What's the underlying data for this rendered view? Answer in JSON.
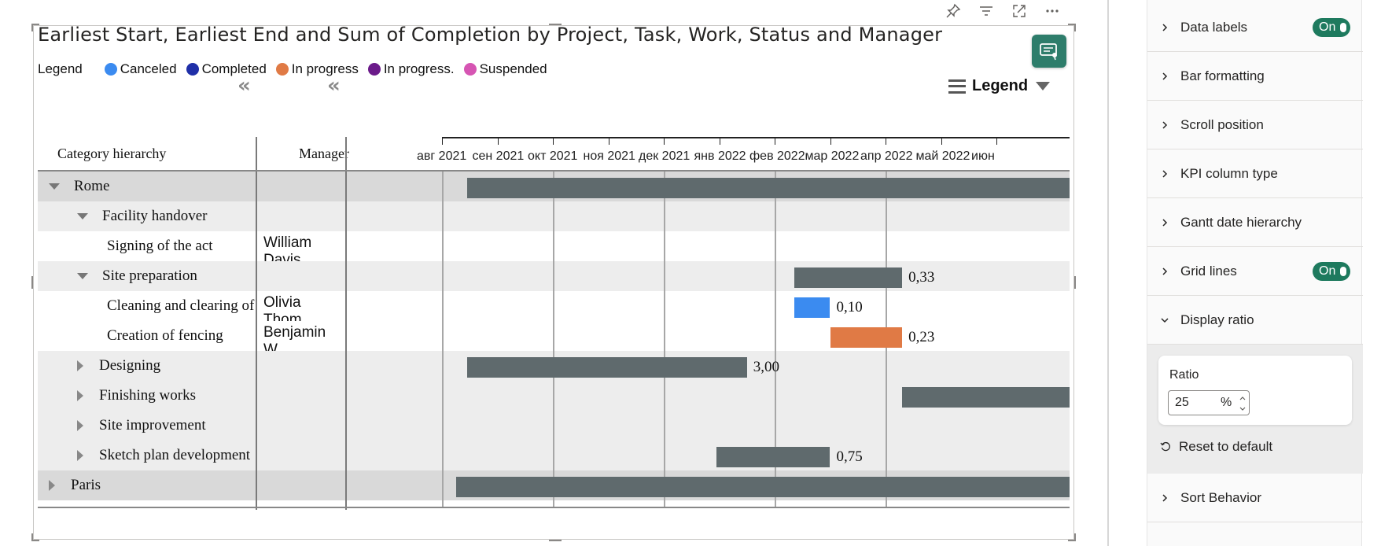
{
  "visual": {
    "title": "Earliest Start, Earliest End and Sum of Completion by Project, Task, Work, Status and Manager",
    "toolbar": [
      {
        "name": "pin-icon"
      },
      {
        "name": "filter-icon"
      },
      {
        "name": "focus-mode-icon"
      },
      {
        "name": "more-options-icon"
      }
    ],
    "insight_icon": "smart-narrative-icon",
    "legend": {
      "title": "Legend",
      "items": [
        {
          "label": "Canceled",
          "color": "#3b8bf0"
        },
        {
          "label": "Completed",
          "color": "#1f2fa8"
        },
        {
          "label": "In progress",
          "color": "#e07a45"
        },
        {
          "label": "In progress.",
          "color": "#6b1a8a"
        },
        {
          "label": "Suspended",
          "color": "#d655b3"
        }
      ]
    },
    "legend_toggle": "Legend",
    "collapse_glyph": "«",
    "columns": {
      "category": "Category hierarchy",
      "manager": "Manager"
    },
    "row_shade_colors": {
      "level0": "#d9d9d9",
      "level1": "#ededed",
      "level2": "#ffffff"
    },
    "months": [
      "авг 2021",
      "сен 2021",
      "окт 2021",
      "ноя 2021",
      "дек 2021",
      "янв 2022",
      "фев 2022",
      "мар 2022",
      "апр 2022",
      "май 2022",
      "июн"
    ],
    "rows": [
      {
        "label": "Rome",
        "level": 0,
        "expander": "expanded",
        "manager": "",
        "bar": {
          "start": 0.45,
          "end": 12.0,
          "color": "#5f6a6d"
        },
        "value": ""
      },
      {
        "label": "Facility handover",
        "level": 1,
        "expander": "expanded",
        "manager": "",
        "bar": null,
        "value": ""
      },
      {
        "label": "Signing of the act",
        "level": 2,
        "expander": "none",
        "manager": "William Davis",
        "bar": null,
        "value": ""
      },
      {
        "label": "Site preparation",
        "level": 1,
        "expander": "expanded",
        "manager": "",
        "bar": {
          "start": 6.35,
          "end": 8.3,
          "color": "#5f6a6d"
        },
        "value": "0,33"
      },
      {
        "label": "Cleaning and clearing of the territory",
        "level": 2,
        "expander": "none",
        "manager": "Olivia Thom...",
        "bar": {
          "start": 6.35,
          "end": 7.0,
          "color": "#3b8bf0"
        },
        "value": "0,10"
      },
      {
        "label": "Creation of fencing",
        "level": 2,
        "expander": "none",
        "manager": "Benjamin W...",
        "bar": {
          "start": 7.0,
          "end": 8.3,
          "color": "#e07a45"
        },
        "value": "0,23"
      },
      {
        "label": "Designing",
        "level": 1,
        "expander": "collapsed",
        "manager": "",
        "bar": {
          "start": 0.45,
          "end": 5.5,
          "color": "#5f6a6d"
        },
        "value": "3,00"
      },
      {
        "label": "Finishing works",
        "level": 1,
        "expander": "collapsed",
        "manager": "",
        "bar": {
          "start": 8.3,
          "end": 12.0,
          "color": "#5f6a6d"
        },
        "value": ""
      },
      {
        "label": "Site improvement",
        "level": 1,
        "expander": "collapsed",
        "manager": "",
        "bar": null,
        "value": ""
      },
      {
        "label": "Sketch plan development",
        "level": 1,
        "expander": "collapsed",
        "manager": "",
        "bar": {
          "start": 4.95,
          "end": 7.0,
          "color": "#5f6a6d"
        },
        "value": "0,75"
      },
      {
        "label": "Paris",
        "level": 0,
        "expander": "collapsed",
        "manager": "",
        "bar": {
          "start": 0.25,
          "end": 12.0,
          "color": "#5f6a6d"
        },
        "value": ""
      }
    ]
  },
  "format_pane": {
    "sections_top": [
      {
        "label": "Data labels",
        "toggle": "On",
        "expanded": false
      },
      {
        "label": "Bar formatting",
        "toggle": null,
        "expanded": false
      },
      {
        "label": "Scroll position",
        "toggle": null,
        "expanded": false
      },
      {
        "label": "KPI column type",
        "toggle": null,
        "expanded": false
      },
      {
        "label": "Gantt date hierarchy",
        "toggle": null,
        "expanded": false
      },
      {
        "label": "Grid lines",
        "toggle": "On",
        "expanded": false
      },
      {
        "label": "Display ratio",
        "toggle": null,
        "expanded": true
      }
    ],
    "ratio": {
      "label": "Ratio",
      "value": "25",
      "unit": "%"
    },
    "reset": "Reset to default",
    "sections_bottom": [
      {
        "label": "Sort Behavior",
        "toggle": null,
        "expanded": false
      }
    ],
    "toggle_color": "#1e7a5e"
  }
}
